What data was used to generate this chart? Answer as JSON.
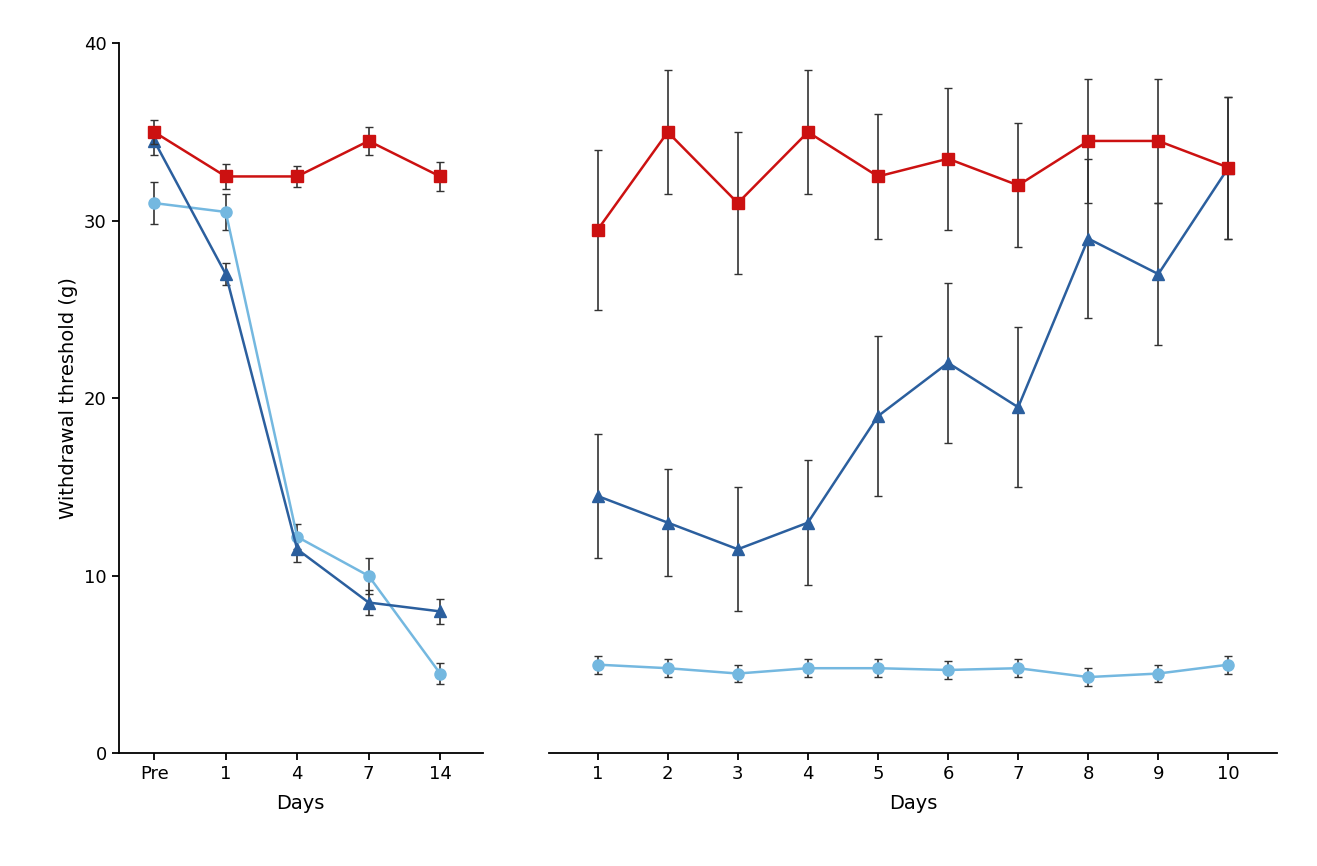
{
  "left_panel": {
    "x_labels": [
      "Pre",
      "1",
      "4",
      "7",
      "14"
    ],
    "x_positions": [
      0,
      1,
      2,
      3,
      4
    ],
    "red_y": [
      35.0,
      32.5,
      32.5,
      34.5,
      32.5
    ],
    "red_err": [
      0.7,
      0.7,
      0.6,
      0.8,
      0.8
    ],
    "lightblue_y": [
      31.0,
      30.5,
      12.2,
      10.0,
      4.5
    ],
    "lightblue_err": [
      1.2,
      1.0,
      0.7,
      1.0,
      0.6
    ],
    "darkblue_y": [
      34.5,
      27.0,
      11.5,
      8.5,
      8.0
    ],
    "darkblue_err": [
      0.8,
      0.6,
      0.7,
      0.7,
      0.7
    ]
  },
  "right_panel": {
    "x_labels": [
      "1",
      "2",
      "3",
      "4",
      "5",
      "6",
      "7",
      "8",
      "9",
      "10"
    ],
    "x_positions": [
      1,
      2,
      3,
      4,
      5,
      6,
      7,
      8,
      9,
      10
    ],
    "red_y": [
      29.5,
      35.0,
      31.0,
      35.0,
      32.5,
      33.5,
      32.0,
      34.5,
      34.5,
      33.0
    ],
    "red_err": [
      4.5,
      3.5,
      4.0,
      3.5,
      3.5,
      4.0,
      3.5,
      3.5,
      3.5,
      4.0
    ],
    "lightblue_y": [
      5.0,
      4.8,
      4.5,
      4.8,
      4.8,
      4.7,
      4.8,
      4.3,
      4.5,
      5.0
    ],
    "lightblue_err": [
      0.5,
      0.5,
      0.5,
      0.5,
      0.5,
      0.5,
      0.5,
      0.5,
      0.5,
      0.5
    ],
    "darkblue_y": [
      14.5,
      13.0,
      11.5,
      13.0,
      19.0,
      22.0,
      19.5,
      29.0,
      27.0,
      33.0
    ],
    "darkblue_err": [
      3.5,
      3.0,
      3.5,
      3.5,
      4.5,
      4.5,
      4.5,
      4.5,
      4.0,
      4.0
    ]
  },
  "colors": {
    "red": "#CC1111",
    "lightblue": "#74B8E0",
    "darkblue": "#2B5F9E"
  },
  "ecolor": "#333333",
  "ylabel": "Withdrawal threshold (g)",
  "xlabel": "Days",
  "ylim": [
    0,
    40
  ],
  "yticks": [
    0,
    10,
    20,
    30,
    40
  ],
  "background": "#FFFFFF",
  "label_fontsize": 14,
  "tick_fontsize": 13
}
